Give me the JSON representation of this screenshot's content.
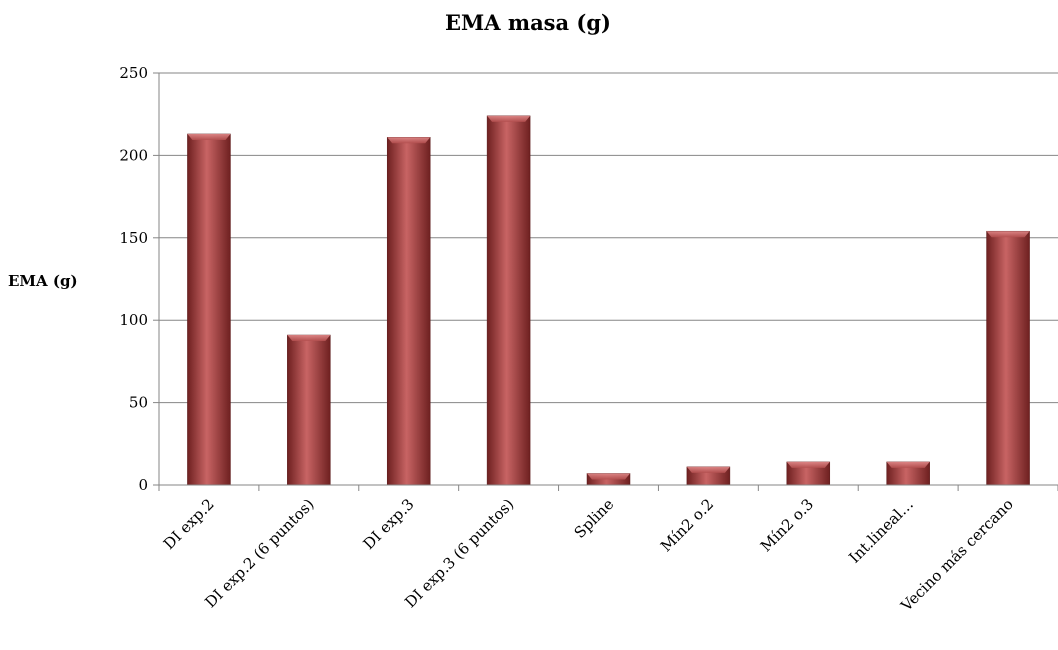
{
  "chart_data": {
    "type": "bar",
    "title": "EMA masa (g)",
    "xlabel": "",
    "ylabel": "EMA (g)",
    "ylim": [
      0,
      250
    ],
    "yticks": [
      0,
      50,
      100,
      150,
      200,
      250
    ],
    "grid": true,
    "legend": "none",
    "categories": [
      "DI exp.2",
      "DI exp.2 (6 puntos)",
      "DI exp.3",
      "DI exp.3 (6 puntos)",
      "Spline",
      "Mín2 o.2",
      "Mín2 o.3",
      "Int.lineal…",
      "Vecino más cercano"
    ],
    "series": [
      {
        "values": [
          213,
          91,
          211,
          224,
          7,
          11,
          14,
          14,
          154
        ]
      }
    ],
    "colors": {
      "bar_light": "#c86464",
      "bar_mid": "#a94545",
      "bar_dark": "#6e2020",
      "grid": "#868686",
      "axis": "#868686"
    }
  }
}
